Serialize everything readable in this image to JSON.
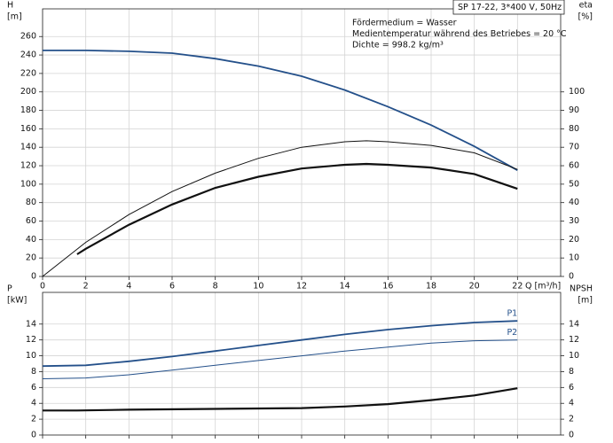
{
  "chart_data": [
    {
      "type": "line",
      "title": "SP 17-22, 3*400 V, 50Hz",
      "annotations": [
        "Fördermedium = Wasser",
        "Medientemperatur während des Betriebes = 20 °C",
        "Dichte = 998.2 kg/m³"
      ],
      "ylabel": [
        "H",
        "[m]"
      ],
      "y2label": [
        "eta",
        "[%]"
      ],
      "xlabel": "Q [m³/h]",
      "xlim": [
        0,
        24
      ],
      "xticks": [
        0,
        2,
        4,
        6,
        8,
        10,
        12,
        14,
        16,
        18,
        20,
        22
      ],
      "show_xtick_labels": true,
      "ylim": [
        0,
        290
      ],
      "yticks": [
        0,
        20,
        40,
        60,
        80,
        100,
        120,
        140,
        160,
        180,
        200,
        220,
        240,
        260
      ],
      "y2lim": [
        0,
        145
      ],
      "y2ticks": [
        0,
        10,
        20,
        30,
        40,
        50,
        60,
        70,
        80,
        90,
        100
      ],
      "grid": true,
      "series": [
        {
          "color": "#24508a",
          "width": 1.8,
          "x": [
            0,
            2,
            4,
            6,
            8,
            10,
            12,
            14,
            16,
            18,
            20,
            22
          ],
          "values": [
            245,
            245,
            244,
            242,
            236,
            228,
            217,
            202,
            184,
            164,
            141,
            115
          ]
        },
        {
          "color": "#111111",
          "width": 1,
          "axis": "y2",
          "x": [
            0,
            2,
            4,
            6,
            8,
            10,
            12,
            14,
            15,
            16,
            18,
            20,
            22
          ],
          "values": [
            0,
            18.5,
            33.5,
            46,
            56,
            64,
            70,
            73,
            73.5,
            73,
            71,
            67,
            58
          ]
        },
        {
          "color": "#111111",
          "width": 2.2,
          "axis": "y2",
          "x": [
            1.6,
            2,
            4,
            6,
            8,
            10,
            12,
            14,
            15,
            16,
            18,
            20,
            22
          ],
          "values": [
            12,
            15,
            28,
            39,
            48,
            54,
            58.5,
            60.5,
            61,
            60.5,
            59,
            55.5,
            47.5
          ]
        }
      ]
    },
    {
      "type": "line",
      "ylabel": [
        "P",
        "[kW]"
      ],
      "y2label": [
        "NPSH",
        "[m]"
      ],
      "xlim": [
        0,
        24
      ],
      "xticks": [
        0,
        2,
        4,
        6,
        8,
        10,
        12,
        14,
        16,
        18,
        20,
        22
      ],
      "show_xtick_labels": false,
      "ylim": [
        0,
        18
      ],
      "yticks": [
        0,
        2,
        4,
        6,
        8,
        10,
        12,
        14
      ],
      "y2lim": [
        0,
        18
      ],
      "y2ticks": [
        0,
        2,
        4,
        6,
        8,
        10,
        12,
        14
      ],
      "grid": true,
      "series": [
        {
          "name": "P1",
          "color": "#24508a",
          "width": 1.8,
          "x": [
            0,
            2,
            4,
            6,
            8,
            10,
            12,
            14,
            16,
            18,
            20,
            22
          ],
          "values": [
            8.7,
            8.8,
            9.3,
            9.9,
            10.6,
            11.3,
            12.0,
            12.7,
            13.3,
            13.8,
            14.2,
            14.4
          ]
        },
        {
          "name": "P2",
          "color": "#24508a",
          "width": 1,
          "x": [
            0,
            2,
            4,
            6,
            8,
            10,
            12,
            14,
            16,
            18,
            20,
            22
          ],
          "values": [
            7.1,
            7.2,
            7.6,
            8.2,
            8.8,
            9.4,
            10.0,
            10.6,
            11.1,
            11.6,
            11.9,
            12.0
          ]
        },
        {
          "color": "#111111",
          "width": 2.2,
          "axis": "y2",
          "x": [
            0,
            1.6,
            4,
            8,
            12,
            14,
            16,
            18,
            20,
            22
          ],
          "values": [
            3.1,
            3.1,
            3.2,
            3.3,
            3.4,
            3.6,
            3.9,
            4.4,
            5.0,
            5.9
          ]
        }
      ]
    }
  ]
}
